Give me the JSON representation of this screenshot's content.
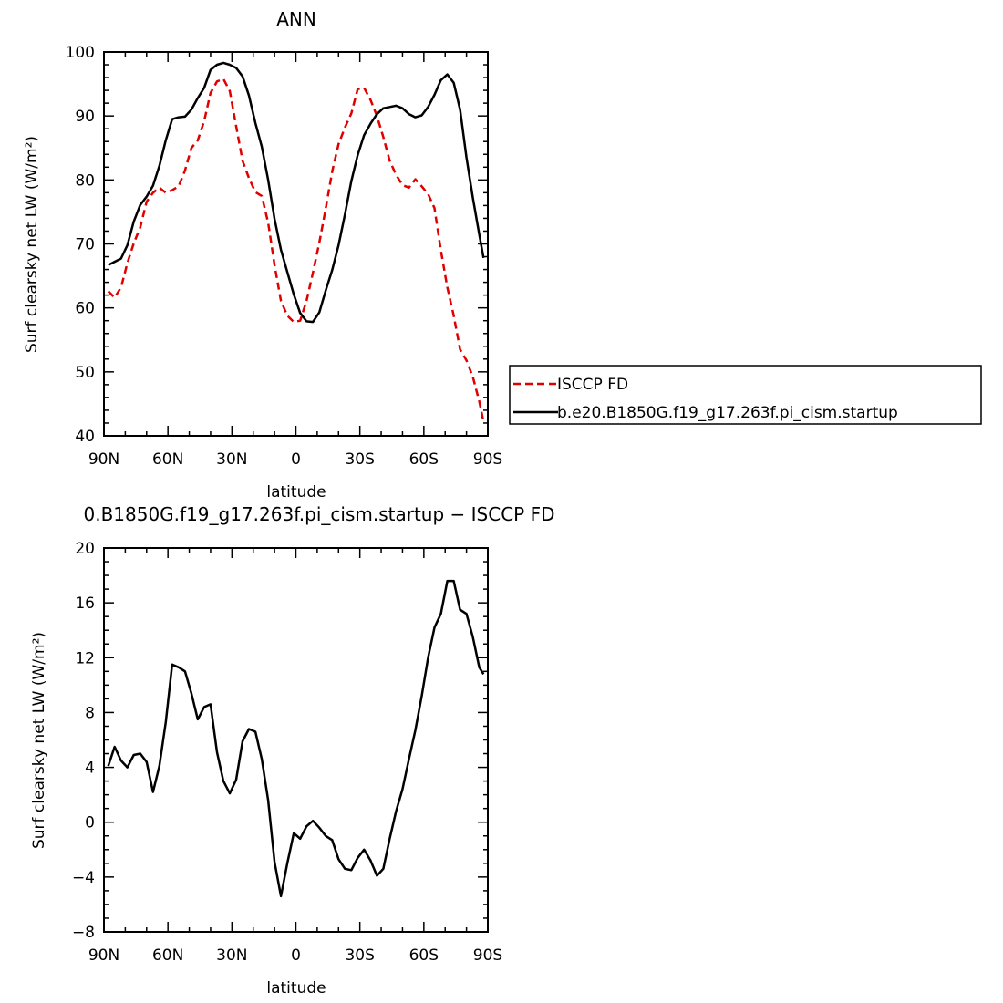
{
  "chart_data": [
    {
      "type": "line",
      "title": "ANN",
      "xlabel": "latitude",
      "ylabel": "Surf clearsky net LW (W/m²)",
      "xlim": [
        -90,
        90
      ],
      "ylim": [
        40,
        100
      ],
      "x_tick_labels": [
        "90N",
        "60N",
        "30N",
        "0",
        "30S",
        "60S",
        "90S"
      ],
      "y_tick_labels": [
        "40",
        "50",
        "60",
        "70",
        "80",
        "90",
        "100"
      ],
      "legend_position": "right",
      "series": [
        {
          "name": "ISCCP FD",
          "color": "#e00000",
          "dashed": true,
          "x": [
            -88,
            -85,
            -82,
            -79,
            -76,
            -73,
            -70,
            -67,
            -64,
            -61,
            -58,
            -55,
            -52,
            -49,
            -46,
            -43,
            -40,
            -37,
            -34,
            -31,
            -28,
            -25,
            -22,
            -19,
            -16,
            -13,
            -10,
            -7,
            -4,
            -1,
            2,
            5,
            8,
            11,
            14,
            17,
            20,
            23,
            26,
            29,
            32,
            35,
            38,
            41,
            44,
            47,
            50,
            53,
            56,
            59,
            62,
            65,
            68,
            71,
            74,
            77,
            80,
            83,
            86,
            88
          ],
          "y": [
            62.6,
            61.6,
            63.2,
            67.0,
            70.1,
            72.6,
            76.6,
            78.0,
            78.8,
            78.0,
            78.4,
            79.0,
            81.5,
            85.0,
            86.2,
            89.2,
            93.6,
            95.4,
            95.8,
            93.9,
            88.4,
            83.0,
            80.3,
            78.1,
            77.5,
            73.3,
            66.7,
            61.1,
            58.8,
            57.8,
            58.0,
            61.1,
            65.5,
            70.2,
            75.5,
            81.3,
            85.6,
            88.2,
            90.4,
            94.2,
            94.4,
            92.5,
            90.0,
            86.7,
            83.0,
            80.8,
            79.2,
            78.8,
            80.1,
            79.0,
            77.8,
            75.6,
            69.0,
            63.2,
            58.8,
            53.5,
            51.8,
            49.2,
            45.4,
            42.2
          ]
        },
        {
          "name": "b.e20.B1850G.f19_g17.263f.pi_cism.startup",
          "color": "#000000",
          "dashed": false,
          "x": [
            -88,
            -85,
            -82,
            -79,
            -76,
            -73,
            -70,
            -67,
            -64,
            -61,
            -58,
            -55,
            -52,
            -49,
            -46,
            -43,
            -40,
            -37,
            -34,
            -31,
            -28,
            -25,
            -22,
            -19,
            -16,
            -13,
            -10,
            -7,
            -4,
            -1,
            2,
            5,
            8,
            11,
            14,
            17,
            20,
            23,
            26,
            29,
            32,
            35,
            38,
            41,
            44,
            47,
            50,
            53,
            56,
            59,
            62,
            65,
            68,
            71,
            74,
            77,
            80,
            83,
            86,
            88
          ],
          "y": [
            66.7,
            67.2,
            67.7,
            69.8,
            73.5,
            76.1,
            77.4,
            79.1,
            82.2,
            86.2,
            89.5,
            89.8,
            89.9,
            91.0,
            92.8,
            94.4,
            97.2,
            98.0,
            98.3,
            98.0,
            97.5,
            96.2,
            93.2,
            88.9,
            85.2,
            80.0,
            73.9,
            69.1,
            65.6,
            62.1,
            59.2,
            57.9,
            57.8,
            59.3,
            62.7,
            65.9,
            69.8,
            74.6,
            79.8,
            83.9,
            87.0,
            88.8,
            90.3,
            91.2,
            91.4,
            91.6,
            91.2,
            90.3,
            89.8,
            90.1,
            91.4,
            93.3,
            95.6,
            96.5,
            95.2,
            91.0,
            83.5,
            77.2,
            71.5,
            67.8
          ]
        }
      ]
    },
    {
      "type": "line",
      "title": "0.B1850G.f19_g17.263f.pi_cism.startup − ISCCP FD",
      "xlabel": "latitude",
      "ylabel": "Surf clearsky net LW (W/m²)",
      "xlim": [
        -90,
        90
      ],
      "ylim": [
        -8,
        20
      ],
      "x_tick_labels": [
        "90N",
        "60N",
        "30N",
        "0",
        "30S",
        "60S",
        "90S"
      ],
      "y_tick_labels": [
        "−8",
        "−4",
        "0",
        "4",
        "8",
        "12",
        "16",
        "20"
      ],
      "series": [
        {
          "color": "#000000",
          "dashed": false,
          "x": [
            -88,
            -85,
            -82,
            -79,
            -76,
            -73,
            -70,
            -67,
            -64,
            -61,
            -58,
            -55,
            -52,
            -49,
            -46,
            -43,
            -40,
            -37,
            -34,
            -31,
            -28,
            -25,
            -22,
            -19,
            -16,
            -13,
            -10,
            -7,
            -4,
            -1,
            2,
            5,
            8,
            11,
            14,
            17,
            20,
            23,
            26,
            29,
            32,
            35,
            38,
            41,
            44,
            47,
            50,
            53,
            56,
            59,
            62,
            65,
            68,
            71,
            74,
            77,
            80,
            83,
            86,
            88
          ],
          "y": [
            4.1,
            5.5,
            4.5,
            4.0,
            4.9,
            5.0,
            4.4,
            2.2,
            4.1,
            7.3,
            11.5,
            11.3,
            11.0,
            9.4,
            7.5,
            8.4,
            8.6,
            5.1,
            3.0,
            2.1,
            3.1,
            5.9,
            6.8,
            6.6,
            4.6,
            1.6,
            -2.9,
            -5.4,
            -3.0,
            -0.8,
            -1.2,
            -0.3,
            0.1,
            -0.4,
            -1.0,
            -1.3,
            -2.7,
            -3.4,
            -3.5,
            -2.6,
            -2.0,
            -2.8,
            -3.9,
            -3.4,
            -1.2,
            0.8,
            2.4,
            4.6,
            6.7,
            9.2,
            12.0,
            14.2,
            15.2,
            17.6,
            17.6,
            15.5,
            15.2,
            13.5,
            11.3,
            10.8
          ]
        }
      ]
    }
  ]
}
